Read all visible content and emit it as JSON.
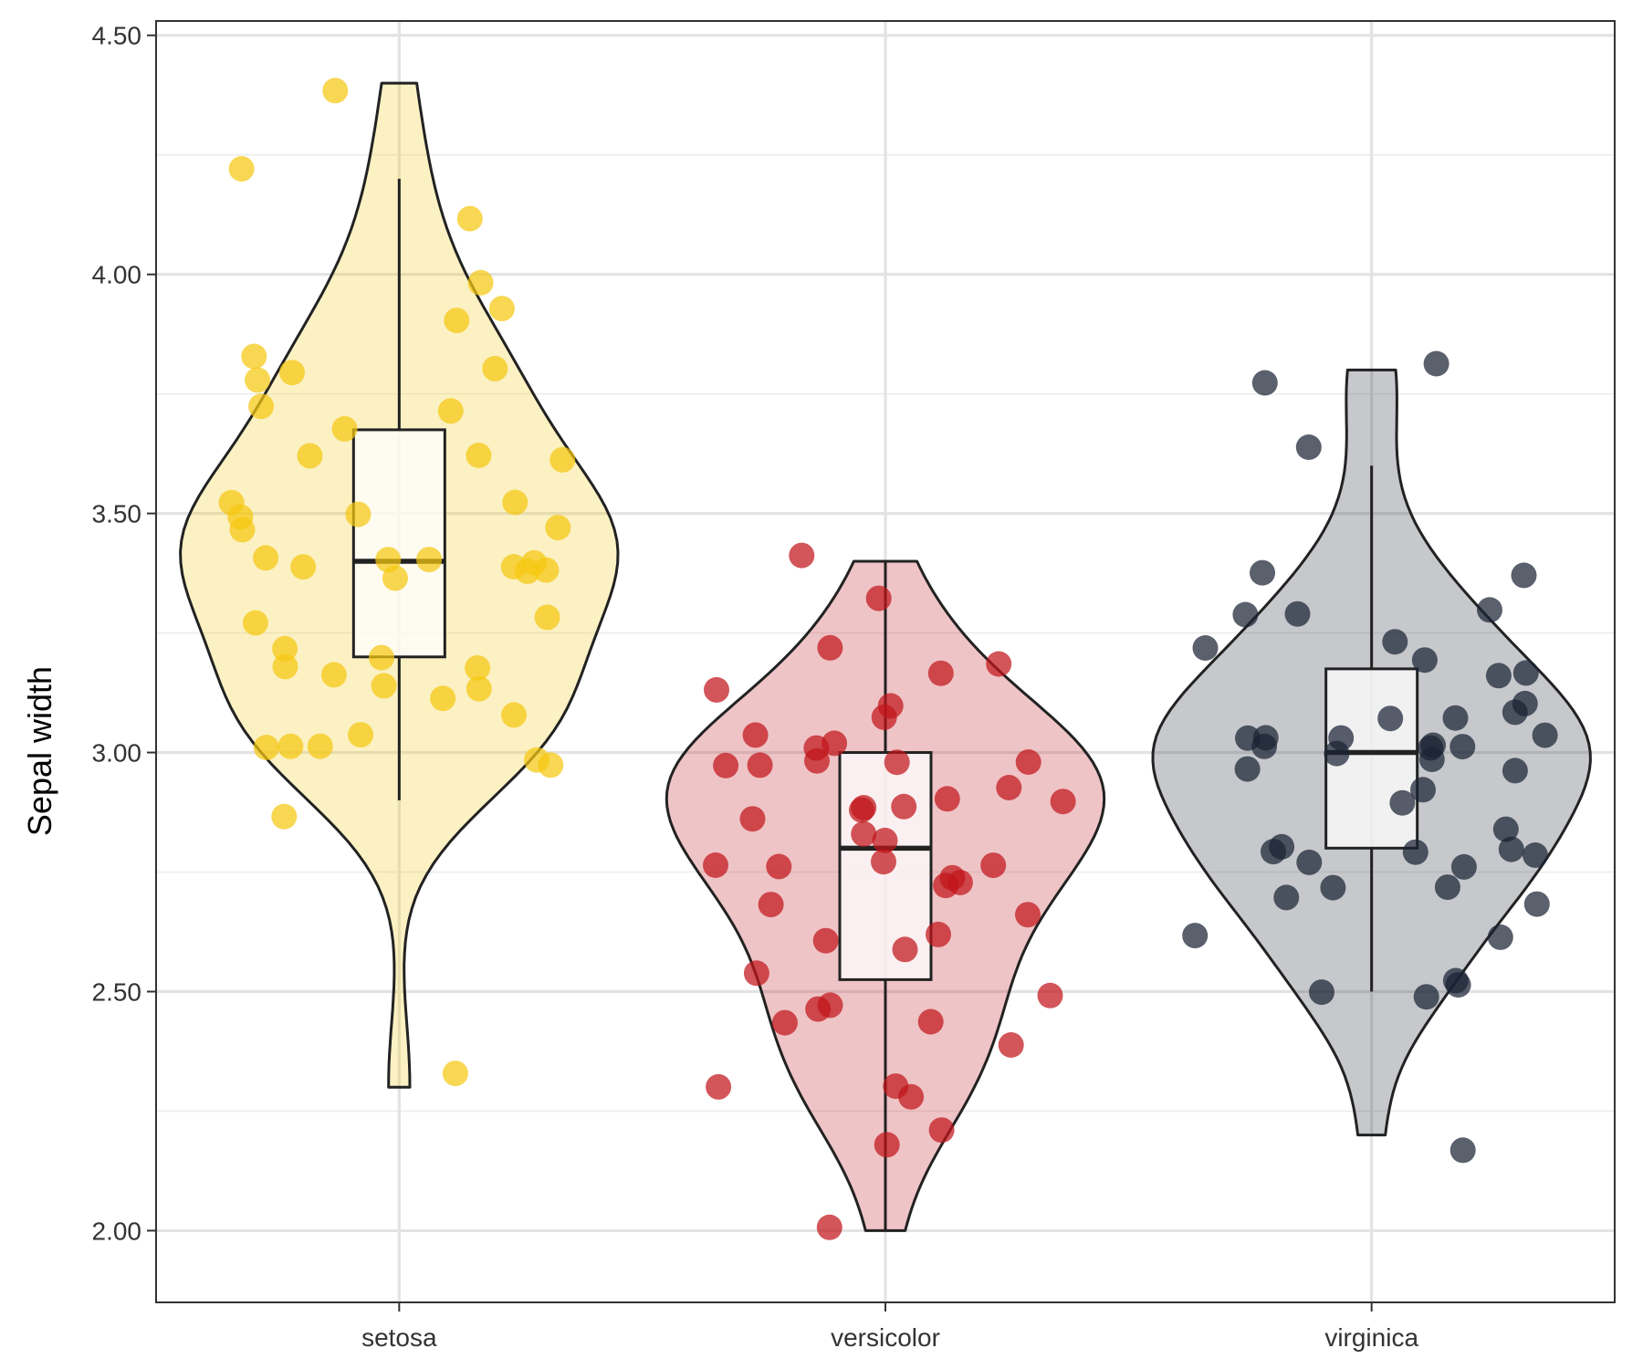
{
  "chart_data": {
    "type": "violin",
    "title": "",
    "xlabel": "",
    "ylabel": "Sepal width",
    "ylim": [
      1.85,
      4.53
    ],
    "yticks": [
      2.0,
      2.5,
      3.0,
      3.5,
      4.0,
      4.5
    ],
    "ytick_labels": [
      "2.00",
      "2.50",
      "3.00",
      "3.50",
      "4.00",
      "4.50"
    ],
    "grid": true,
    "legend": "none",
    "categories": [
      "setosa",
      "versicolor",
      "virginica"
    ],
    "series": [
      {
        "category": "setosa",
        "color": "#F5C710",
        "min": 2.3,
        "q1": 3.2,
        "median": 3.4,
        "q3": 3.675,
        "max": 4.4,
        "whisker_low": 2.9,
        "whisker_high": 4.2,
        "points": [
          3.5,
          3.0,
          3.2,
          3.1,
          3.6,
          3.9,
          3.4,
          3.4,
          2.9,
          3.1,
          3.7,
          3.4,
          3.0,
          3.0,
          4.0,
          4.4,
          3.9,
          3.5,
          3.8,
          3.8,
          3.4,
          3.7,
          3.6,
          3.3,
          3.4,
          3.0,
          3.4,
          3.5,
          3.4,
          3.2,
          3.1,
          3.4,
          4.1,
          4.2,
          3.1,
          3.2,
          3.5,
          3.6,
          3.0,
          3.4,
          3.5,
          2.3,
          3.2,
          3.5,
          3.8,
          3.0,
          3.8,
          3.2,
          3.7,
          3.3
        ]
      },
      {
        "category": "versicolor",
        "color": "#C0151B",
        "min": 2.0,
        "q1": 2.525,
        "median": 2.8,
        "q3": 3.0,
        "max": 3.4,
        "whisker_low": 2.0,
        "whisker_high": 3.4,
        "points": [
          3.2,
          3.2,
          3.1,
          2.3,
          2.8,
          2.8,
          3.3,
          2.4,
          2.9,
          2.7,
          2.0,
          3.0,
          2.2,
          2.9,
          2.9,
          3.1,
          3.0,
          2.7,
          2.2,
          2.5,
          3.2,
          2.8,
          2.5,
          2.8,
          2.9,
          3.0,
          2.8,
          3.0,
          2.9,
          2.6,
          2.4,
          2.4,
          2.7,
          2.7,
          3.0,
          3.4,
          3.1,
          2.3,
          3.0,
          2.5,
          2.6,
          3.0,
          2.6,
          2.3,
          2.7,
          3.0,
          2.9,
          2.9,
          2.5,
          2.8
        ]
      },
      {
        "category": "virginica",
        "color": "#1A2233",
        "min": 2.2,
        "q1": 2.8,
        "median": 3.0,
        "q3": 3.175,
        "max": 3.8,
        "whisker_low": 2.5,
        "whisker_high": 3.6,
        "points": [
          3.3,
          2.7,
          3.0,
          2.9,
          3.0,
          3.0,
          2.5,
          2.9,
          2.5,
          3.6,
          3.2,
          2.7,
          3.0,
          2.5,
          2.8,
          3.2,
          3.0,
          3.8,
          2.6,
          2.2,
          3.2,
          2.8,
          2.8,
          2.7,
          3.3,
          3.2,
          2.8,
          3.0,
          2.8,
          3.0,
          2.8,
          3.8,
          2.8,
          2.8,
          2.6,
          3.0,
          3.4,
          3.1,
          3.0,
          3.1,
          3.1,
          3.1,
          2.7,
          3.2,
          3.3,
          3.0,
          2.5,
          3.0,
          3.4,
          3.0
        ]
      }
    ]
  }
}
